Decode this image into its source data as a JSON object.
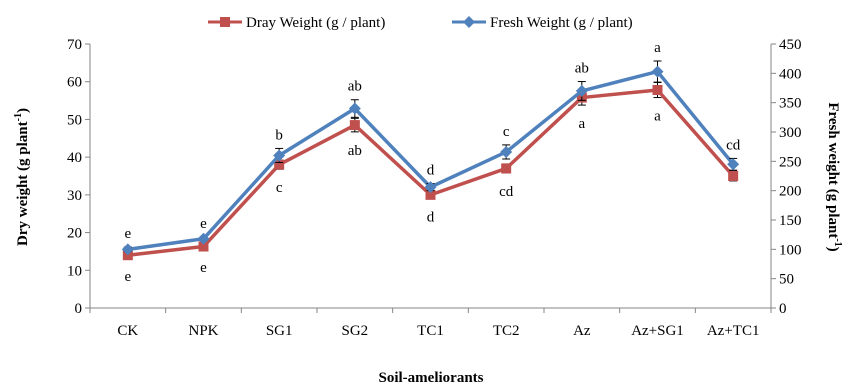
{
  "chart_data": {
    "type": "line",
    "xlabel": "Soil-ameliorants",
    "ylabel_left": "Dry weight (g plant",
    "ylabel_left_sup": "-1",
    "ylabel_left_end": ")",
    "ylabel_right": "Fresh weight (g plant",
    "ylabel_right_sup": "-1",
    "ylabel_right_end": ")",
    "categories": [
      "CK",
      "NPK",
      "SG1",
      "SG2",
      "TC1",
      "TC2",
      "Az",
      "Az+SG1",
      "Az+TC1"
    ],
    "ylim_left": [
      0,
      70
    ],
    "yticks_left": [
      0,
      10,
      20,
      30,
      40,
      50,
      60,
      70
    ],
    "ylim_right": [
      0,
      450
    ],
    "yticks_right": [
      0,
      50,
      100,
      150,
      200,
      250,
      300,
      350,
      400,
      450
    ],
    "legend_position": "top",
    "grid": false,
    "series": [
      {
        "name": "Dray Weight (g / plant)",
        "axis": "left",
        "color": "#C0504D",
        "marker": "square",
        "values": [
          14,
          16.3,
          38,
          48.5,
          30,
          37,
          55.8,
          57.8,
          35
        ],
        "errors": [
          0.8,
          0.6,
          1.2,
          1.8,
          1.0,
          1.2,
          2.0,
          2.0,
          1.3
        ],
        "significance": [
          "e",
          "e",
          "c",
          "ab",
          "d",
          "cd",
          "a",
          "a",
          ""
        ]
      },
      {
        "name": "Fresh Weight (g / plant)",
        "axis": "right",
        "color": "#4F81BD",
        "marker": "diamond",
        "values": [
          100,
          118,
          260,
          340,
          206,
          266,
          370,
          403,
          245
        ],
        "errors": [
          4,
          3,
          12,
          15,
          6,
          12,
          16,
          18,
          10
        ],
        "significance": [
          "e",
          "e",
          "b",
          "ab",
          "d",
          "c",
          "ab",
          "a",
          "cd"
        ]
      }
    ]
  }
}
